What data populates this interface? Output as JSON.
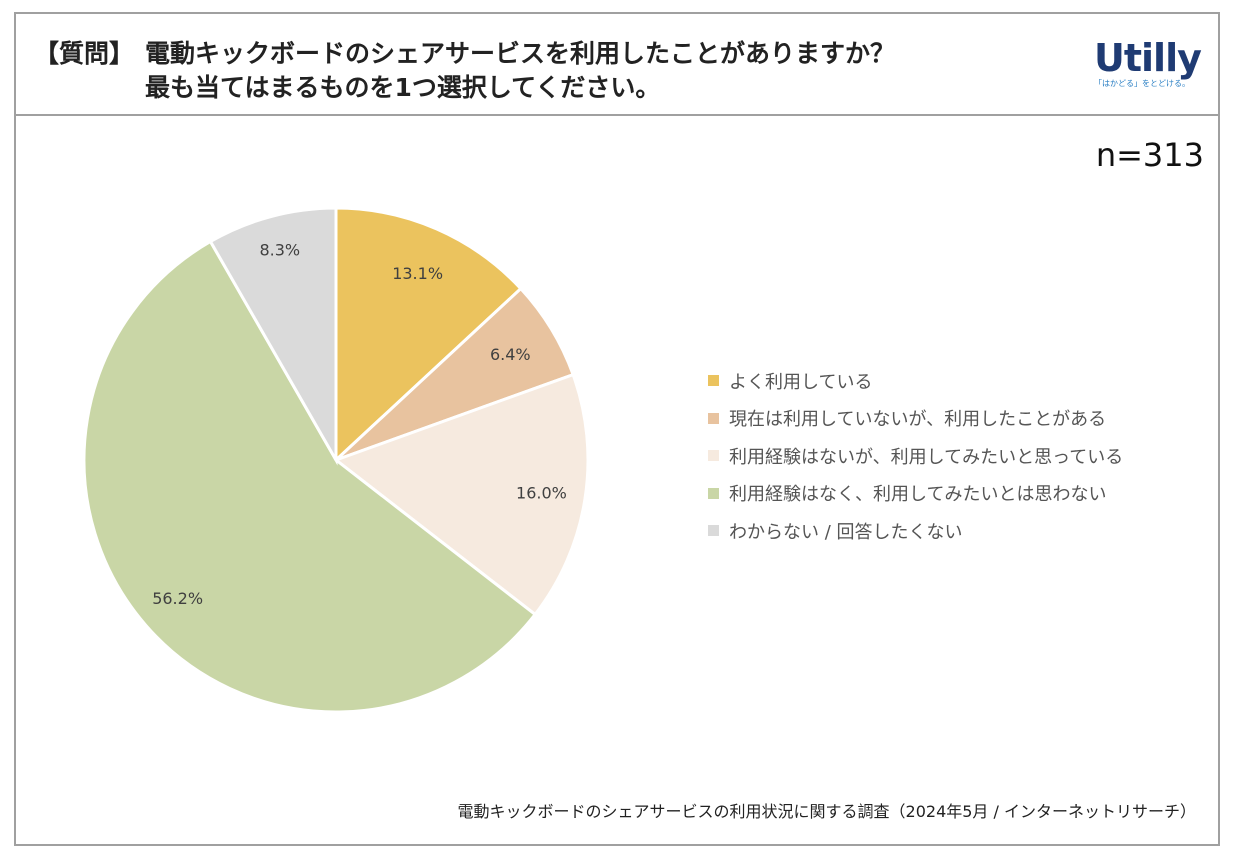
{
  "header": {
    "tag": "【質問】",
    "question_line1": "電動キックボードのシェアサービスを利用したことがありますか？",
    "question_line2": "最も当てはまるものを1つ選択してください。"
  },
  "logo": {
    "name": "Utilly",
    "tagline": "「はかどる」をとどける。"
  },
  "sample_size": "n=313",
  "source": "電動キックボードのシェアサービスの利用状況に関する調査（2024年5月 / インターネットリサーチ）",
  "chart_data": {
    "type": "pie",
    "title": "電動キックボードのシェアサービスを利用したことがありますか？",
    "start": "12 o'clock, clockwise",
    "legend_position": "right",
    "slices": [
      {
        "label": "よく利用している",
        "value": 13.1,
        "display": "13.1%",
        "color": "#EBC35E"
      },
      {
        "label": "現在は利用していないが、利用したことがある",
        "value": 6.4,
        "display": "6.4%",
        "color": "#E8C39F"
      },
      {
        "label": "利用経験はないが、利用してみたいと思っている",
        "value": 16.0,
        "display": "16.0%",
        "color": "#F6EADF"
      },
      {
        "label": "利用経験はなく、利用してみたいとは思わない",
        "value": 56.2,
        "display": "56.2%",
        "color": "#C9D6A6"
      },
      {
        "label": "わからない / 回答したくない",
        "value": 8.3,
        "display": "8.3%",
        "color": "#DADADA"
      }
    ]
  }
}
